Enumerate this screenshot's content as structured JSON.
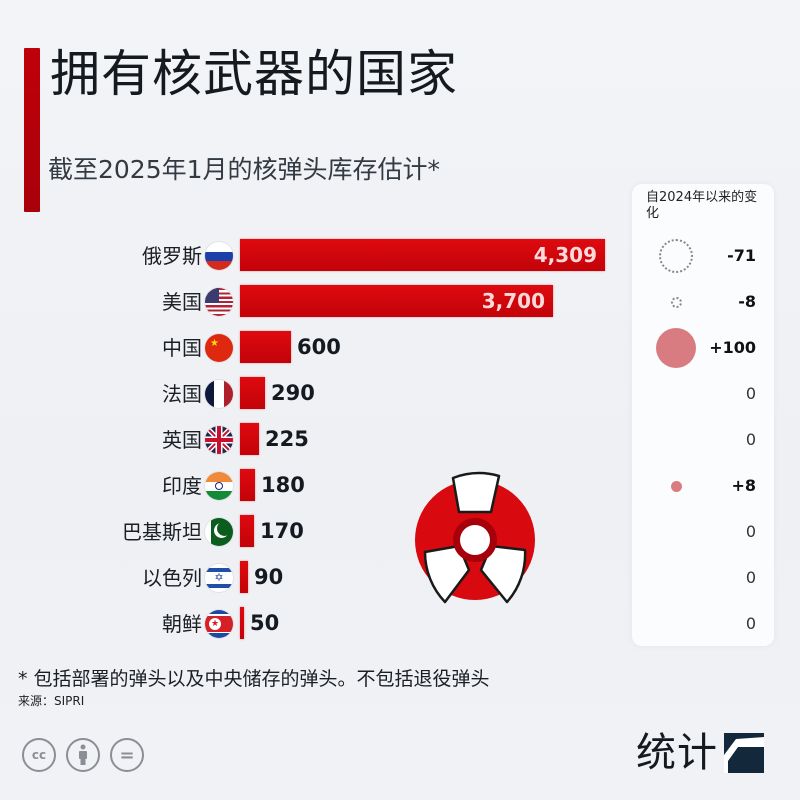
{
  "header": {
    "title": "拥有核武器的国家",
    "subtitle": "截至2025年1月的核弹头库存估计*"
  },
  "change_panel": {
    "title": "自2024年以来的变化"
  },
  "countries": [
    {
      "name": "俄罗斯",
      "flag": "russia-flag",
      "value": 4309,
      "value_label": "4,309",
      "change": -71,
      "change_label": "-71"
    },
    {
      "name": "美国",
      "flag": "usa-flag",
      "value": 3700,
      "value_label": "3,700",
      "change": -8,
      "change_label": "-8"
    },
    {
      "name": "中国",
      "flag": "china-flag",
      "value": 600,
      "value_label": "600",
      "change": 100,
      "change_label": "+100"
    },
    {
      "name": "法国",
      "flag": "france-flag",
      "value": 290,
      "value_label": "290",
      "change": 0,
      "change_label": "0"
    },
    {
      "name": "英国",
      "flag": "uk-flag",
      "value": 225,
      "value_label": "225",
      "change": 0,
      "change_label": "0"
    },
    {
      "name": "印度",
      "flag": "india-flag",
      "value": 180,
      "value_label": "180",
      "change": 8,
      "change_label": "+8"
    },
    {
      "name": "巴基斯坦",
      "flag": "pakistan-flag",
      "value": 170,
      "value_label": "170",
      "change": 0,
      "change_label": "0"
    },
    {
      "name": "以色列",
      "flag": "israel-flag",
      "value": 90,
      "value_label": "90",
      "change": 0,
      "change_label": "0"
    },
    {
      "name": "朝鲜",
      "flag": "north-korea-flag",
      "value": 50,
      "value_label": "50",
      "change": 0,
      "change_label": "0"
    }
  ],
  "footer": {
    "footnote": "* 包括部署的弹头以及中央储存的弹头。不包括退役弹头",
    "source": "来源：SIPRI",
    "license_icons": [
      "cc-icon",
      "attribution-icon",
      "no-derivatives-icon"
    ],
    "cc_label": "cc",
    "nd_label": "=",
    "brand": "统计"
  },
  "colors": {
    "bar": "#d00a10",
    "accent": "#b8000a",
    "positive_bubble": "#d97c82",
    "negative_bubble_border": "#888888"
  },
  "chart_data": {
    "type": "bar",
    "orientation": "horizontal",
    "title": "拥有核武器的国家",
    "subtitle": "截至2025年1月的核弹头库存估计*",
    "categories": [
      "俄罗斯",
      "美国",
      "中国",
      "法国",
      "英国",
      "印度",
      "巴基斯坦",
      "以色列",
      "朝鲜"
    ],
    "series": [
      {
        "name": "核弹头库存",
        "values": [
          4309,
          3700,
          600,
          290,
          225,
          180,
          170,
          90,
          50
        ]
      },
      {
        "name": "自2024年以来的变化",
        "values": [
          -71,
          -8,
          100,
          0,
          0,
          8,
          0,
          0,
          0
        ]
      }
    ],
    "xlabel": "",
    "ylabel": "",
    "grid": false,
    "legend": "none",
    "annotations": [
      "* 包括部署的弹头以及中央储存的弹头。不包括退役弹头",
      "来源：SIPRI"
    ]
  }
}
